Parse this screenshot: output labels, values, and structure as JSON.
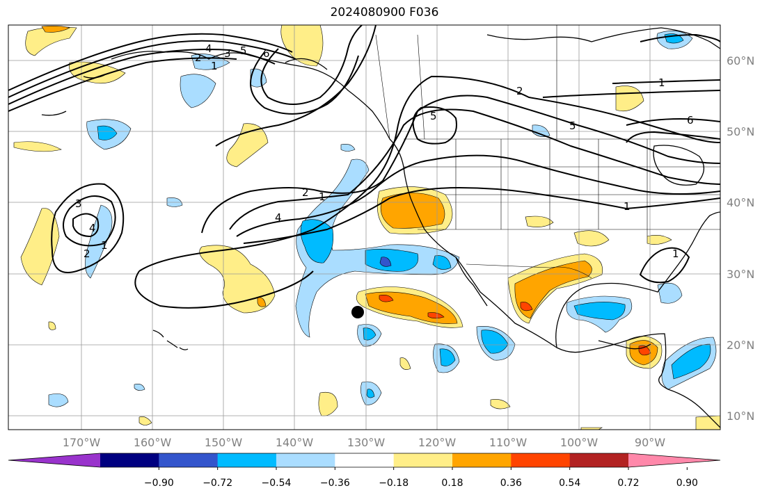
{
  "title": "2024080900 F036",
  "lon_labels": [
    "170°W",
    "160°W",
    "150°W",
    "140°W",
    "130°W",
    "120°W",
    "110°W",
    "100°W",
    "90°W"
  ],
  "lat_labels": [
    "60°N",
    "50°N",
    "40°N",
    "30°N",
    "20°N",
    "10°N"
  ],
  "colorbar": {
    "ticks": [
      "−0.90",
      "−0.72",
      "−0.54",
      "−0.36",
      "−0.18",
      "0.18",
      "0.36",
      "0.54",
      "0.72",
      "0.90"
    ],
    "colors": [
      "#9933cc",
      "#000080",
      "#3355cc",
      "#00bbff",
      "#aaddff",
      "#ffffff",
      "#ffee88",
      "#ffa500",
      "#ff4400",
      "#b22222",
      "#ff88aa"
    ]
  },
  "contour_labels": [
    "1",
    "2",
    "3",
    "4",
    "5",
    "6",
    "1",
    "2",
    "3",
    "4",
    "2",
    "1",
    "2",
    "4",
    "5",
    "6",
    "1",
    "1",
    "5",
    "1"
  ],
  "colors": {
    "land": "#000000",
    "grid": "#999999",
    "blue": "#aaddff",
    "blue_dark": "#00bbff",
    "yellow": "#ffee88",
    "orange": "#ffa500",
    "red": "#ff4400"
  }
}
